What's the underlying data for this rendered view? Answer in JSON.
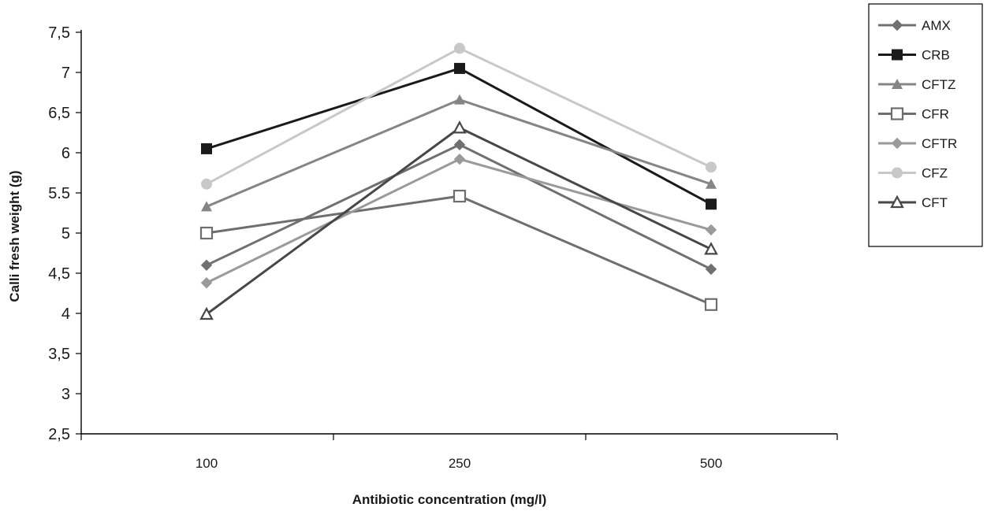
{
  "chart_data": {
    "type": "line",
    "title": "",
    "xlabel": "Antibiotic concentration (mg/l)",
    "ylabel": "Calli fresh weight (g)",
    "categories": [
      "100",
      "250",
      "500"
    ],
    "ylim": [
      2.5,
      7.5
    ],
    "yticks": [
      {
        "value": 2.5,
        "label": "2,5"
      },
      {
        "value": 3,
        "label": "3"
      },
      {
        "value": 3.5,
        "label": "3,5"
      },
      {
        "value": 4,
        "label": "4"
      },
      {
        "value": 4.5,
        "label": "4,5"
      },
      {
        "value": 5,
        "label": "5"
      },
      {
        "value": 5.5,
        "label": "5.5"
      },
      {
        "value": 6,
        "label": "6"
      },
      {
        "value": 6.5,
        "label": "6,5"
      },
      {
        "value": 7,
        "label": "7"
      },
      {
        "value": 7.5,
        "label": "7,5"
      }
    ],
    "grid": false,
    "legend_position": "top-right",
    "series": [
      {
        "name": "AMX",
        "values": [
          4.6,
          6.1,
          4.55
        ],
        "color": "#707070",
        "marker": "diamond-filled"
      },
      {
        "name": "CRB",
        "values": [
          6.05,
          7.05,
          5.36
        ],
        "color": "#1a1a1a",
        "marker": "square-filled"
      },
      {
        "name": "CFTZ",
        "values": [
          5.33,
          6.66,
          5.61
        ],
        "color": "#858585",
        "marker": "triangle-filled"
      },
      {
        "name": "CFR",
        "values": [
          5.0,
          5.46,
          4.11
        ],
        "color": "#6e6e6e",
        "marker": "square-open"
      },
      {
        "name": "CFTR",
        "values": [
          4.38,
          5.92,
          5.04
        ],
        "color": "#9a9a9a",
        "marker": "diamond-filled"
      },
      {
        "name": "CFZ",
        "values": [
          5.61,
          7.3,
          5.82
        ],
        "color": "#c8c8c8",
        "marker": "circle-filled"
      },
      {
        "name": "CFT",
        "values": [
          3.99,
          6.31,
          4.8
        ],
        "color": "#474747",
        "marker": "triangle-open"
      }
    ]
  }
}
